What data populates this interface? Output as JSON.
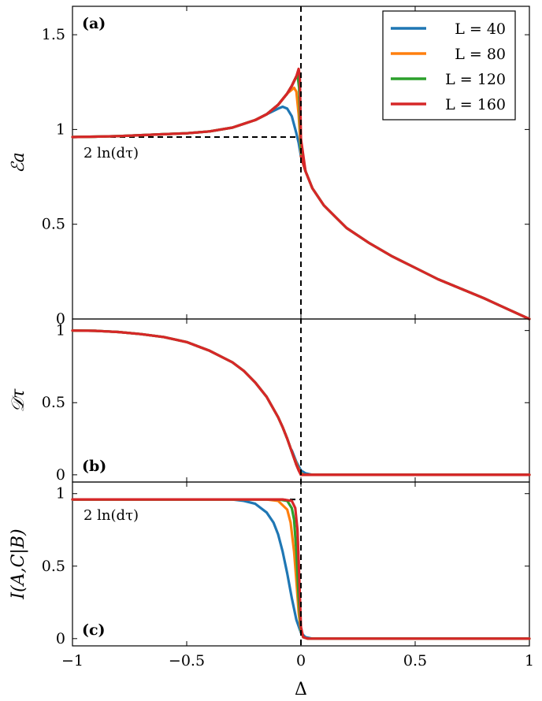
{
  "chart_data": {
    "type": "line",
    "xlabel": "Δ",
    "xlim": [
      -1,
      1
    ],
    "x_ticks": [
      "−1",
      "−0.5",
      "0",
      "0.5",
      "1"
    ],
    "x_tick_values": [
      -1,
      -0.5,
      0,
      0.5,
      1
    ],
    "colors": {
      "L = 40": "#1f77b4",
      "L = 80": "#ff7f0e",
      "L = 120": "#2ca02c",
      "L = 160": "#d62728"
    },
    "legend": {
      "placement": "top-right",
      "entries": [
        "L = 40",
        "L = 80",
        "L = 120",
        "L = 160"
      ]
    },
    "critical_point_marker": {
      "x": 0,
      "style": "dashed"
    },
    "panels": [
      {
        "label": "(a)",
        "ylabel": "ℰa",
        "ylim": [
          0,
          1.65
        ],
        "y_ticks": [
          "0",
          "0.5",
          "1",
          "1.5"
        ],
        "y_tick_values": [
          0,
          0.5,
          1,
          1.5
        ],
        "annotation": "2 ln(dτ)",
        "reference_level": 0.96,
        "shared_curve": {
          "x": [
            -1,
            -0.9,
            -0.8,
            -0.7,
            -0.6,
            -0.5,
            -0.4,
            -0.3,
            -0.25,
            -0.2,
            -0.15,
            -0.12,
            -0.1,
            -0.08,
            -0.06,
            -0.04,
            -0.02
          ],
          "y": [
            0.96,
            0.962,
            0.965,
            0.97,
            0.975,
            0.98,
            0.99,
            1.01,
            1.03,
            1.05,
            1.08,
            1.11,
            1.13,
            1.16,
            1.19,
            1.23,
            1.28
          ]
        },
        "right_branch": {
          "x": [
            0,
            0.02,
            0.05,
            0.1,
            0.15,
            0.2,
            0.3,
            0.4,
            0.5,
            0.6,
            0.7,
            0.8,
            0.9,
            1.0
          ],
          "y": [
            0.86,
            0.78,
            0.69,
            0.6,
            0.54,
            0.48,
            0.4,
            0.33,
            0.27,
            0.21,
            0.16,
            0.11,
            0.055,
            0.0
          ]
        },
        "series": [
          {
            "name": "L = 40",
            "x": [
              -0.2,
              -0.15,
              -0.1,
              -0.08,
              -0.06,
              -0.04,
              -0.02,
              -0.01,
              0.0,
              0.02
            ],
            "y": [
              1.05,
              1.08,
              1.11,
              1.12,
              1.11,
              1.07,
              0.98,
              0.93,
              0.86,
              0.78
            ]
          },
          {
            "name": "L = 80",
            "x": [
              -0.2,
              -0.15,
              -0.1,
              -0.06,
              -0.04,
              -0.03,
              -0.02,
              -0.01,
              0.0,
              0.02
            ],
            "y": [
              1.05,
              1.08,
              1.13,
              1.19,
              1.21,
              1.22,
              1.2,
              1.08,
              0.88,
              0.78
            ]
          },
          {
            "name": "L = 120",
            "x": [
              -0.2,
              -0.15,
              -0.1,
              -0.06,
              -0.04,
              -0.02,
              -0.015,
              -0.008,
              0.0,
              0.02
            ],
            "y": [
              1.05,
              1.08,
              1.13,
              1.19,
              1.23,
              1.28,
              1.29,
              1.22,
              0.9,
              0.78
            ]
          },
          {
            "name": "L = 160",
            "x": [
              -0.2,
              -0.15,
              -0.1,
              -0.06,
              -0.04,
              -0.02,
              -0.01,
              -0.005,
              0.0,
              0.02
            ],
            "y": [
              1.05,
              1.08,
              1.13,
              1.19,
              1.23,
              1.28,
              1.32,
              1.28,
              0.95,
              0.78
            ]
          }
        ]
      },
      {
        "label": "(b)",
        "ylabel": "𝒟τ",
        "ylim": [
          -0.05,
          1.08
        ],
        "y_ticks": [
          "0",
          "0.5",
          "1"
        ],
        "y_tick_values": [
          0,
          0.5,
          1
        ],
        "shared_curve": {
          "x": [
            -1,
            -0.9,
            -0.8,
            -0.7,
            -0.6,
            -0.5,
            -0.4,
            -0.3,
            -0.25,
            -0.2,
            -0.15,
            -0.1,
            -0.08,
            -0.06,
            -0.04,
            -0.02,
            0,
            0.03,
            0.1,
            0.5,
            1.0
          ],
          "y": [
            1.0,
            0.998,
            0.99,
            0.975,
            0.955,
            0.92,
            0.86,
            0.78,
            0.72,
            0.64,
            0.54,
            0.4,
            0.33,
            0.25,
            0.16,
            0.07,
            0.0,
            0.0,
            0.0,
            0.0,
            0.0
          ]
        },
        "series": [
          {
            "name": "L = 40",
            "x": [
              -0.04,
              -0.02,
              0.0,
              0.02,
              0.05,
              0.1,
              1.0
            ],
            "y": [
              0.17,
              0.09,
              0.03,
              0.01,
              0.0,
              0.0,
              0.0
            ]
          },
          {
            "name": "L = 80",
            "x": [
              -0.03,
              -0.015,
              0.0,
              0.015,
              0.05,
              1.0
            ],
            "y": [
              0.12,
              0.06,
              0.01,
              0.0,
              0.0,
              0.0
            ]
          },
          {
            "name": "L = 120",
            "x": [
              -0.02,
              -0.01,
              0.0,
              0.01,
              0.05,
              1.0
            ],
            "y": [
              0.07,
              0.035,
              0.005,
              0.0,
              0.0,
              0.0
            ]
          },
          {
            "name": "L = 160",
            "x": [
              -0.02,
              -0.01,
              0.0,
              0.01,
              0.05,
              1.0
            ],
            "y": [
              0.07,
              0.03,
              0.0,
              0.0,
              0.0,
              0.0
            ]
          }
        ]
      },
      {
        "label": "(c)",
        "ylabel": "I(A,C|B)",
        "ylim": [
          -0.05,
          1.08
        ],
        "y_ticks": [
          "0",
          "0.5",
          "1"
        ],
        "y_tick_values": [
          0,
          0.5,
          1
        ],
        "annotation": "2 ln(dτ)",
        "reference_level": 0.96,
        "series": [
          {
            "name": "L = 40",
            "x": [
              -1,
              -0.3,
              -0.25,
              -0.2,
              -0.15,
              -0.12,
              -0.1,
              -0.08,
              -0.06,
              -0.04,
              -0.02,
              0.0,
              0.02,
              0.05,
              0.1,
              1.0
            ],
            "y": [
              0.96,
              0.96,
              0.95,
              0.93,
              0.87,
              0.8,
              0.72,
              0.6,
              0.45,
              0.28,
              0.13,
              0.04,
              0.01,
              0.0,
              0.0,
              0.0
            ]
          },
          {
            "name": "L = 80",
            "x": [
              -1,
              -0.15,
              -0.1,
              -0.06,
              -0.045,
              -0.03,
              -0.02,
              -0.01,
              0.0,
              0.01,
              0.03,
              0.1,
              1.0
            ],
            "y": [
              0.96,
              0.96,
              0.95,
              0.89,
              0.8,
              0.6,
              0.4,
              0.18,
              0.05,
              0.01,
              0.0,
              0.0,
              0.0
            ]
          },
          {
            "name": "L = 120",
            "x": [
              -1,
              -0.1,
              -0.06,
              -0.04,
              -0.03,
              -0.02,
              -0.01,
              0.0,
              0.01,
              0.03,
              1.0
            ],
            "y": [
              0.96,
              0.96,
              0.95,
              0.9,
              0.82,
              0.6,
              0.28,
              0.06,
              0.01,
              0.0,
              0.0
            ]
          },
          {
            "name": "L = 160",
            "x": [
              -1,
              -0.08,
              -0.04,
              -0.025,
              -0.015,
              -0.008,
              0.0,
              0.01,
              0.03,
              1.0
            ],
            "y": [
              0.96,
              0.96,
              0.95,
              0.9,
              0.75,
              0.45,
              0.08,
              0.01,
              0.0,
              0.0
            ]
          }
        ]
      }
    ]
  }
}
